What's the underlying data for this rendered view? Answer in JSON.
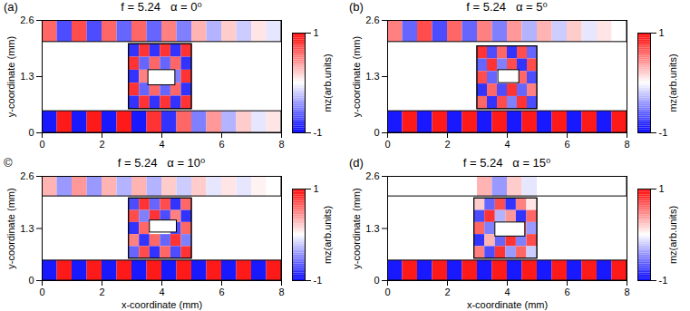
{
  "chart_data": [
    {
      "type": "heatmap",
      "panel": "(a)",
      "title": "f = 5.24   α = 0⁰",
      "ylabel": "y-coordinate (mm)",
      "xlim": [
        0,
        8
      ],
      "ylim": [
        0,
        2.6
      ],
      "xticks": [
        0,
        2,
        4,
        6,
        8
      ],
      "yticks": [
        0,
        1.3,
        2.6
      ],
      "x_bins": [
        0,
        0.5,
        1,
        1.5,
        2,
        2.5,
        3,
        3.5,
        4,
        4.5,
        5,
        5.5,
        6,
        6.5,
        7,
        7.5,
        8
      ],
      "strips": [
        {
          "y": [
            2.1,
            2.6
          ],
          "values": [
            0.6,
            -0.7,
            0.7,
            -0.7,
            0.6,
            -0.6,
            0.6,
            -0.6,
            0.5,
            -0.5,
            0.3,
            -0.3,
            0.2,
            -0.2,
            0.1,
            -0.1
          ]
        },
        {
          "y": [
            0,
            0.5
          ],
          "values": [
            -0.9,
            0.9,
            -0.9,
            0.9,
            -0.9,
            0.9,
            -0.9,
            0.8,
            -0.8,
            0.6,
            -0.5,
            0.4,
            -0.3,
            0.2,
            -0.1,
            0.1
          ]
        }
      ],
      "inset": {
        "x": [
          2.9,
          5.0
        ],
        "y": [
          0.55,
          2.05
        ],
        "hole": {
          "x": [
            3.55,
            4.45
          ],
          "y": [
            1.1,
            1.45
          ]
        },
        "cells": [
          [
            -0.8,
            0.8,
            -0.8,
            0.8,
            -0.8,
            0.8
          ],
          [
            0.8,
            -0.6,
            0.6,
            -0.6,
            0.6,
            -0.8
          ],
          [
            -0.8,
            0.5,
            null,
            null,
            -0.5,
            0.8
          ],
          [
            0.8,
            -0.6,
            0.6,
            -0.6,
            0.6,
            -0.8
          ],
          [
            -0.8,
            0.8,
            -0.8,
            0.8,
            -0.8,
            0.8
          ]
        ]
      },
      "colorbar": {
        "label": "mz(arb.units)",
        "range": [
          -1,
          1
        ],
        "ticks": [
          -1,
          1
        ],
        "colors": [
          "#0000ff",
          "#ffffff",
          "#ff0000"
        ]
      }
    },
    {
      "type": "heatmap",
      "panel": "(b)",
      "title": "f = 5.24   α = 5⁰",
      "ylabel": "y-coordinate (mm)",
      "xlim": [
        0,
        8
      ],
      "ylim": [
        0,
        2.6
      ],
      "xticks": [
        0,
        2,
        4,
        6,
        8
      ],
      "yticks": [
        0,
        1.3,
        2.6
      ],
      "x_bins": [
        0,
        0.5,
        1,
        1.5,
        2,
        2.5,
        3,
        3.5,
        4,
        4.5,
        5,
        5.5,
        6,
        6.5,
        7,
        7.5,
        8
      ],
      "strips": [
        {
          "y": [
            2.1,
            2.6
          ],
          "values": [
            0.5,
            -0.6,
            0.7,
            -0.7,
            0.6,
            -0.6,
            0.5,
            -0.5,
            0.4,
            -0.3,
            0.3,
            -0.2,
            0.2,
            -0.1,
            0.1,
            0
          ]
        },
        {
          "y": [
            0,
            0.5
          ],
          "values": [
            -0.9,
            0.9,
            -0.9,
            0.9,
            -0.9,
            0.9,
            -0.9,
            0.9,
            -0.9,
            0.9,
            -0.9,
            0.9,
            -0.9,
            0.9,
            -0.9,
            0.9
          ]
        }
      ],
      "inset": {
        "x": [
          3.0,
          5.0
        ],
        "y": [
          0.55,
          2.0
        ],
        "hole": {
          "x": [
            3.7,
            4.4
          ],
          "y": [
            1.15,
            1.45
          ]
        },
        "cells": [
          [
            0.8,
            -0.7,
            0.6,
            -0.8,
            0.7,
            -0.6
          ],
          [
            -0.6,
            0.8,
            -0.5,
            0.7,
            -0.8,
            0.7
          ],
          [
            0.7,
            -0.6,
            null,
            null,
            0.6,
            -0.7
          ],
          [
            -0.8,
            0.6,
            -0.7,
            0.8,
            -0.6,
            0.5
          ],
          [
            0.6,
            -0.8,
            0.7,
            -0.5,
            0.8,
            -0.7
          ]
        ]
      },
      "colorbar": {
        "label": "mz(arb.units)",
        "range": [
          -1,
          1
        ],
        "ticks": [
          -1,
          1
        ],
        "colors": [
          "#0000ff",
          "#ffffff",
          "#ff0000"
        ]
      }
    },
    {
      "type": "heatmap",
      "panel": "©",
      "title": "f = 5.24   α = 10⁰",
      "xlabel": "x-coordinate (mm)",
      "ylabel": "y-coordinate (mm)",
      "xlim": [
        0,
        8
      ],
      "ylim": [
        0,
        2.6
      ],
      "xticks": [
        0,
        2,
        4,
        6,
        8
      ],
      "yticks": [
        0,
        1.3,
        2.6
      ],
      "x_bins": [
        0,
        0.5,
        1,
        1.5,
        2,
        2.5,
        3,
        3.5,
        4,
        4.5,
        5,
        5.5,
        6,
        6.5,
        7,
        7.5,
        8
      ],
      "strips": [
        {
          "y": [
            2.1,
            2.6
          ],
          "values": [
            0.3,
            -0.4,
            0.4,
            -0.4,
            0.3,
            -0.3,
            0.3,
            -0.3,
            0.2,
            -0.2,
            0.2,
            -0.1,
            0.1,
            -0.1,
            0.05,
            0
          ]
        },
        {
          "y": [
            0,
            0.5
          ],
          "values": [
            -0.9,
            0.9,
            -0.9,
            0.9,
            -0.9,
            0.9,
            -0.9,
            0.9,
            -0.9,
            0.9,
            -0.9,
            0.9,
            -0.9,
            0.9,
            -0.9,
            0.9
          ]
        }
      ],
      "inset": {
        "x": [
          2.9,
          5.0
        ],
        "y": [
          0.55,
          2.05
        ],
        "hole": {
          "x": [
            3.6,
            4.5
          ],
          "y": [
            1.2,
            1.5
          ]
        },
        "cells": [
          [
            -0.7,
            0.8,
            -0.6,
            0.7,
            -0.8,
            0.6
          ],
          [
            0.7,
            -0.5,
            0.8,
            -0.7,
            0.5,
            -0.8
          ],
          [
            -0.8,
            0.6,
            null,
            null,
            -0.7,
            0.6
          ],
          [
            0.5,
            -0.8,
            0.6,
            -0.6,
            0.8,
            -0.5
          ],
          [
            -0.6,
            0.7,
            -0.8,
            0.6,
            -0.7,
            0.8
          ]
        ]
      },
      "colorbar": {
        "label": "mz(arb.units)",
        "range": [
          -1,
          1
        ],
        "ticks": [
          -1,
          1
        ],
        "colors": [
          "#0000ff",
          "#ffffff",
          "#ff0000"
        ]
      }
    },
    {
      "type": "heatmap",
      "panel": "(d)",
      "title": "f = 5.24   α = 15⁰",
      "xlabel": "x-coordinate (mm)",
      "ylabel": "y-coordinate (mm)",
      "xlim": [
        0,
        8
      ],
      "ylim": [
        0,
        2.6
      ],
      "xticks": [
        0,
        2,
        4,
        6,
        8
      ],
      "yticks": [
        0,
        1.3,
        2.6
      ],
      "x_bins": [
        0,
        0.5,
        1,
        1.5,
        2,
        2.5,
        3,
        3.5,
        4,
        4.5,
        5,
        5.5,
        6,
        6.5,
        7,
        7.5,
        8
      ],
      "strips": [
        {
          "y": [
            2.1,
            2.6
          ],
          "values": [
            0,
            0,
            0,
            0,
            0,
            0,
            0.3,
            -0.4,
            0.2,
            -0.1,
            0,
            0,
            0,
            0,
            0,
            0
          ]
        },
        {
          "y": [
            0,
            0.5
          ],
          "values": [
            -0.9,
            0.9,
            -0.9,
            0.9,
            -0.9,
            0.9,
            -0.9,
            0.9,
            -0.9,
            0.9,
            -0.9,
            0.9,
            -0.9,
            0.9,
            -0.9,
            0.9
          ]
        }
      ],
      "inset": {
        "x": [
          2.9,
          5.0
        ],
        "y": [
          0.55,
          2.05
        ],
        "hole": {
          "x": [
            3.6,
            4.6
          ],
          "y": [
            1.1,
            1.45
          ]
        },
        "cells": [
          [
            0.2,
            -0.6,
            0.7,
            -0.8,
            0.5,
            0.1
          ],
          [
            -0.7,
            0.8,
            -0.3,
            0.4,
            -0.8,
            0.6
          ],
          [
            0.6,
            -0.5,
            null,
            null,
            0.7,
            -0.4
          ],
          [
            -0.8,
            0.3,
            -0.6,
            0.8,
            -0.5,
            0.7
          ],
          [
            0.5,
            -0.7,
            0.8,
            -0.4,
            0.6,
            -0.2
          ]
        ]
      },
      "colorbar": {
        "label": "mz(arb.units)",
        "range": [
          -1,
          1
        ],
        "ticks": [
          -1,
          1
        ],
        "colors": [
          "#0000ff",
          "#ffffff",
          "#ff0000"
        ]
      }
    }
  ]
}
